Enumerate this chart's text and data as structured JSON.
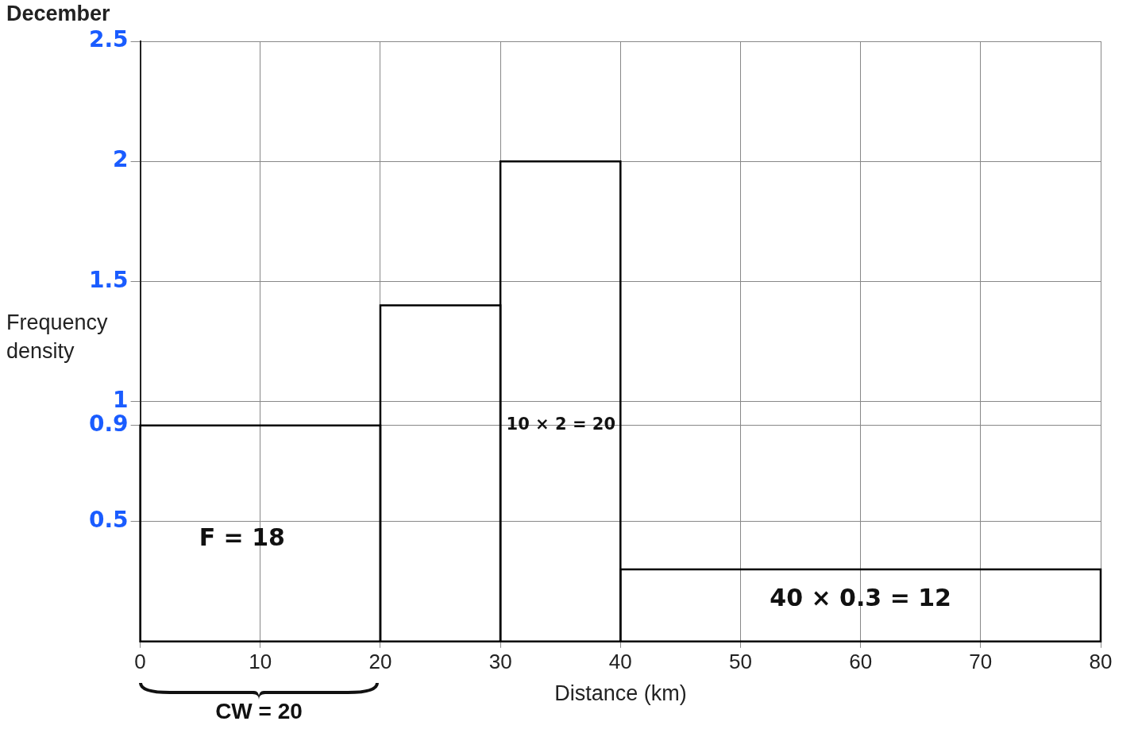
{
  "chart_data": {
    "type": "histogram",
    "title": "December",
    "xlabel": "Distance (km)",
    "ylabel": "Frequency density",
    "bins": [
      0,
      20,
      30,
      40,
      80
    ],
    "values": [
      0.9,
      1.4,
      2,
      0.3
    ],
    "color": "#000000",
    "xlim": [
      0,
      80
    ],
    "xticks": [
      0,
      10,
      20,
      30,
      40,
      50,
      60,
      70,
      80
    ],
    "ylim": [
      0,
      2.5
    ],
    "yticks": [
      0.5,
      0.9,
      1,
      1.5,
      2,
      2.5
    ],
    "grid": true,
    "annotations": [
      "F = 18",
      "10 × 2 = 20",
      "40 × 0.3 = 12",
      "CW = 20"
    ]
  }
}
